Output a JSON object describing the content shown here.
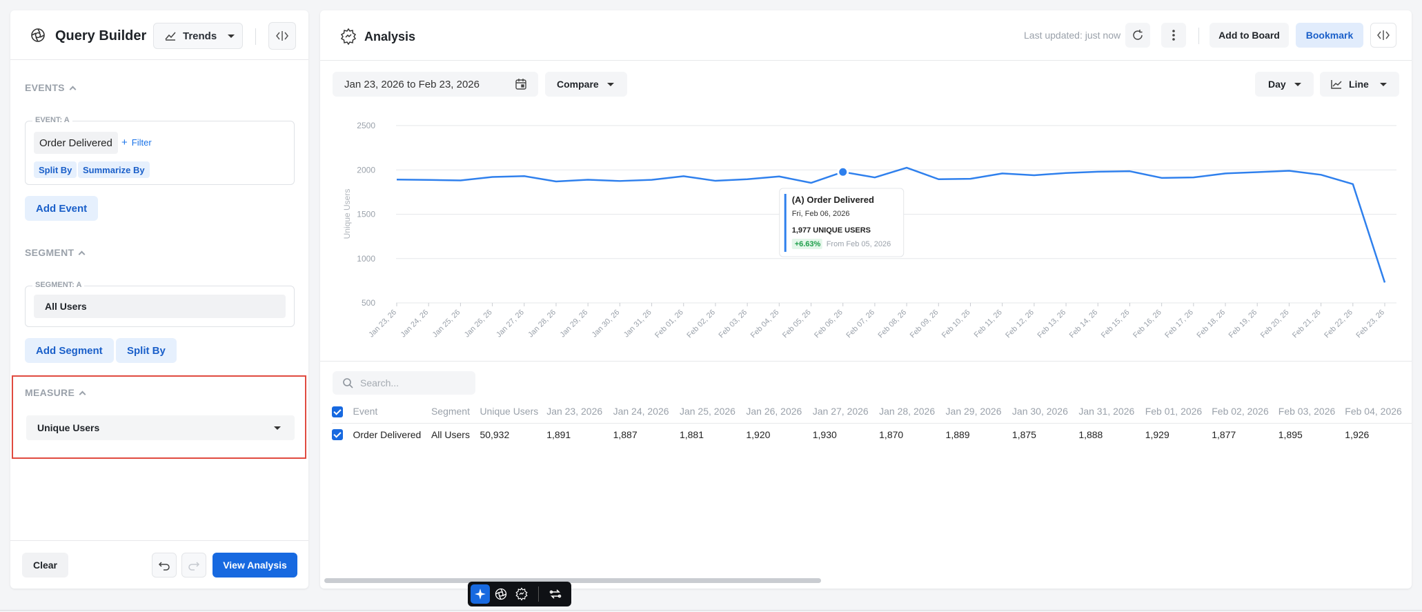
{
  "query_builder": {
    "title": "Query Builder",
    "mode_label": "Trends",
    "events_section": "EVENTS",
    "event_card_tag": "EVENT: A",
    "event_name": "Order Delivered",
    "filter_label": "Filter",
    "split_by_label": "Split By",
    "summarize_by_label": "Summarize By",
    "add_event_label": "Add Event",
    "segment_section": "SEGMENT",
    "segment_card_tag": "SEGMENT: A",
    "segment_value": "All Users",
    "add_segment_label": "Add Segment",
    "segment_split_by_label": "Split By",
    "measure_section": "MEASURE",
    "measure_value": "Unique Users",
    "clear_label": "Clear",
    "view_analysis_label": "View Analysis"
  },
  "analysis": {
    "title": "Analysis",
    "last_updated": "Last updated: just now",
    "add_to_board_label": "Add to Board",
    "bookmark_label": "Bookmark",
    "date_range": "Jan 23, 2026 to Feb 23, 2026",
    "compare_label": "Compare",
    "interval_label": "Day",
    "chart_type_label": "Line",
    "search_placeholder": "Search..."
  },
  "chart_data": {
    "type": "line",
    "ylabel": "Unique Users",
    "ylim": [
      500,
      2500
    ],
    "yticks": [
      2500,
      2000,
      1500,
      1000,
      500
    ],
    "grid": true,
    "accent_color": "#2f80ed",
    "categories": [
      "Jan 23, 26",
      "Jan 24, 26",
      "Jan 25, 26",
      "Jan 26, 26",
      "Jan 27, 26",
      "Jan 28, 26",
      "Jan 29, 26",
      "Jan 30, 26",
      "Jan 31, 26",
      "Feb 01, 26",
      "Feb 02, 26",
      "Feb 03, 26",
      "Feb 04, 26",
      "Feb 05, 26",
      "Feb 06, 26",
      "Feb 07, 26",
      "Feb 08, 26",
      "Feb 09, 26",
      "Feb 10, 26",
      "Feb 11, 26",
      "Feb 12, 26",
      "Feb 13, 26",
      "Feb 14, 26",
      "Feb 15, 26",
      "Feb 16, 26",
      "Feb 17, 26",
      "Feb 18, 26",
      "Feb 19, 26",
      "Feb 20, 26",
      "Feb 21, 26",
      "Feb 22, 26",
      "Feb 23, 26"
    ],
    "series": [
      {
        "values": [
          1891,
          1887,
          1881,
          1920,
          1930,
          1870,
          1889,
          1875,
          1888,
          1929,
          1877,
          1895,
          1926,
          1854,
          1977,
          1915,
          2025,
          1895,
          1900,
          1960,
          1940,
          1965,
          1980,
          1985,
          1910,
          1915,
          1960,
          1975,
          1990,
          1945,
          1840,
          730
        ]
      }
    ],
    "highlight_index": 14,
    "tooltip": {
      "title": "(A) Order Delivered",
      "date": "Fri, Feb 06, 2026",
      "value_text": "1,977 UNIQUE USERS",
      "change": "+6.63%",
      "change_ref": "From Feb 05, 2026"
    }
  },
  "table": {
    "columns": [
      "Event",
      "Segment",
      "Unique Users",
      "Jan 23, 2026",
      "Jan 24, 2026",
      "Jan 25, 2026",
      "Jan 26, 2026",
      "Jan 27, 2026",
      "Jan 28, 2026",
      "Jan 29, 2026",
      "Jan 30, 2026",
      "Jan 31, 2026",
      "Feb 01, 2026",
      "Feb 02, 2026",
      "Feb 03, 2026",
      "Feb 04, 2026"
    ],
    "rows": [
      [
        "Order Delivered",
        "All Users",
        "50,932",
        "1,891",
        "1,887",
        "1,881",
        "1,920",
        "1,930",
        "1,870",
        "1,889",
        "1,875",
        "1,888",
        "1,929",
        "1,877",
        "1,895",
        "1,926"
      ]
    ]
  },
  "colors": {
    "primary": "#1769e0",
    "highlight_border": "#e04a3f",
    "positive": "#1e9e4a"
  }
}
